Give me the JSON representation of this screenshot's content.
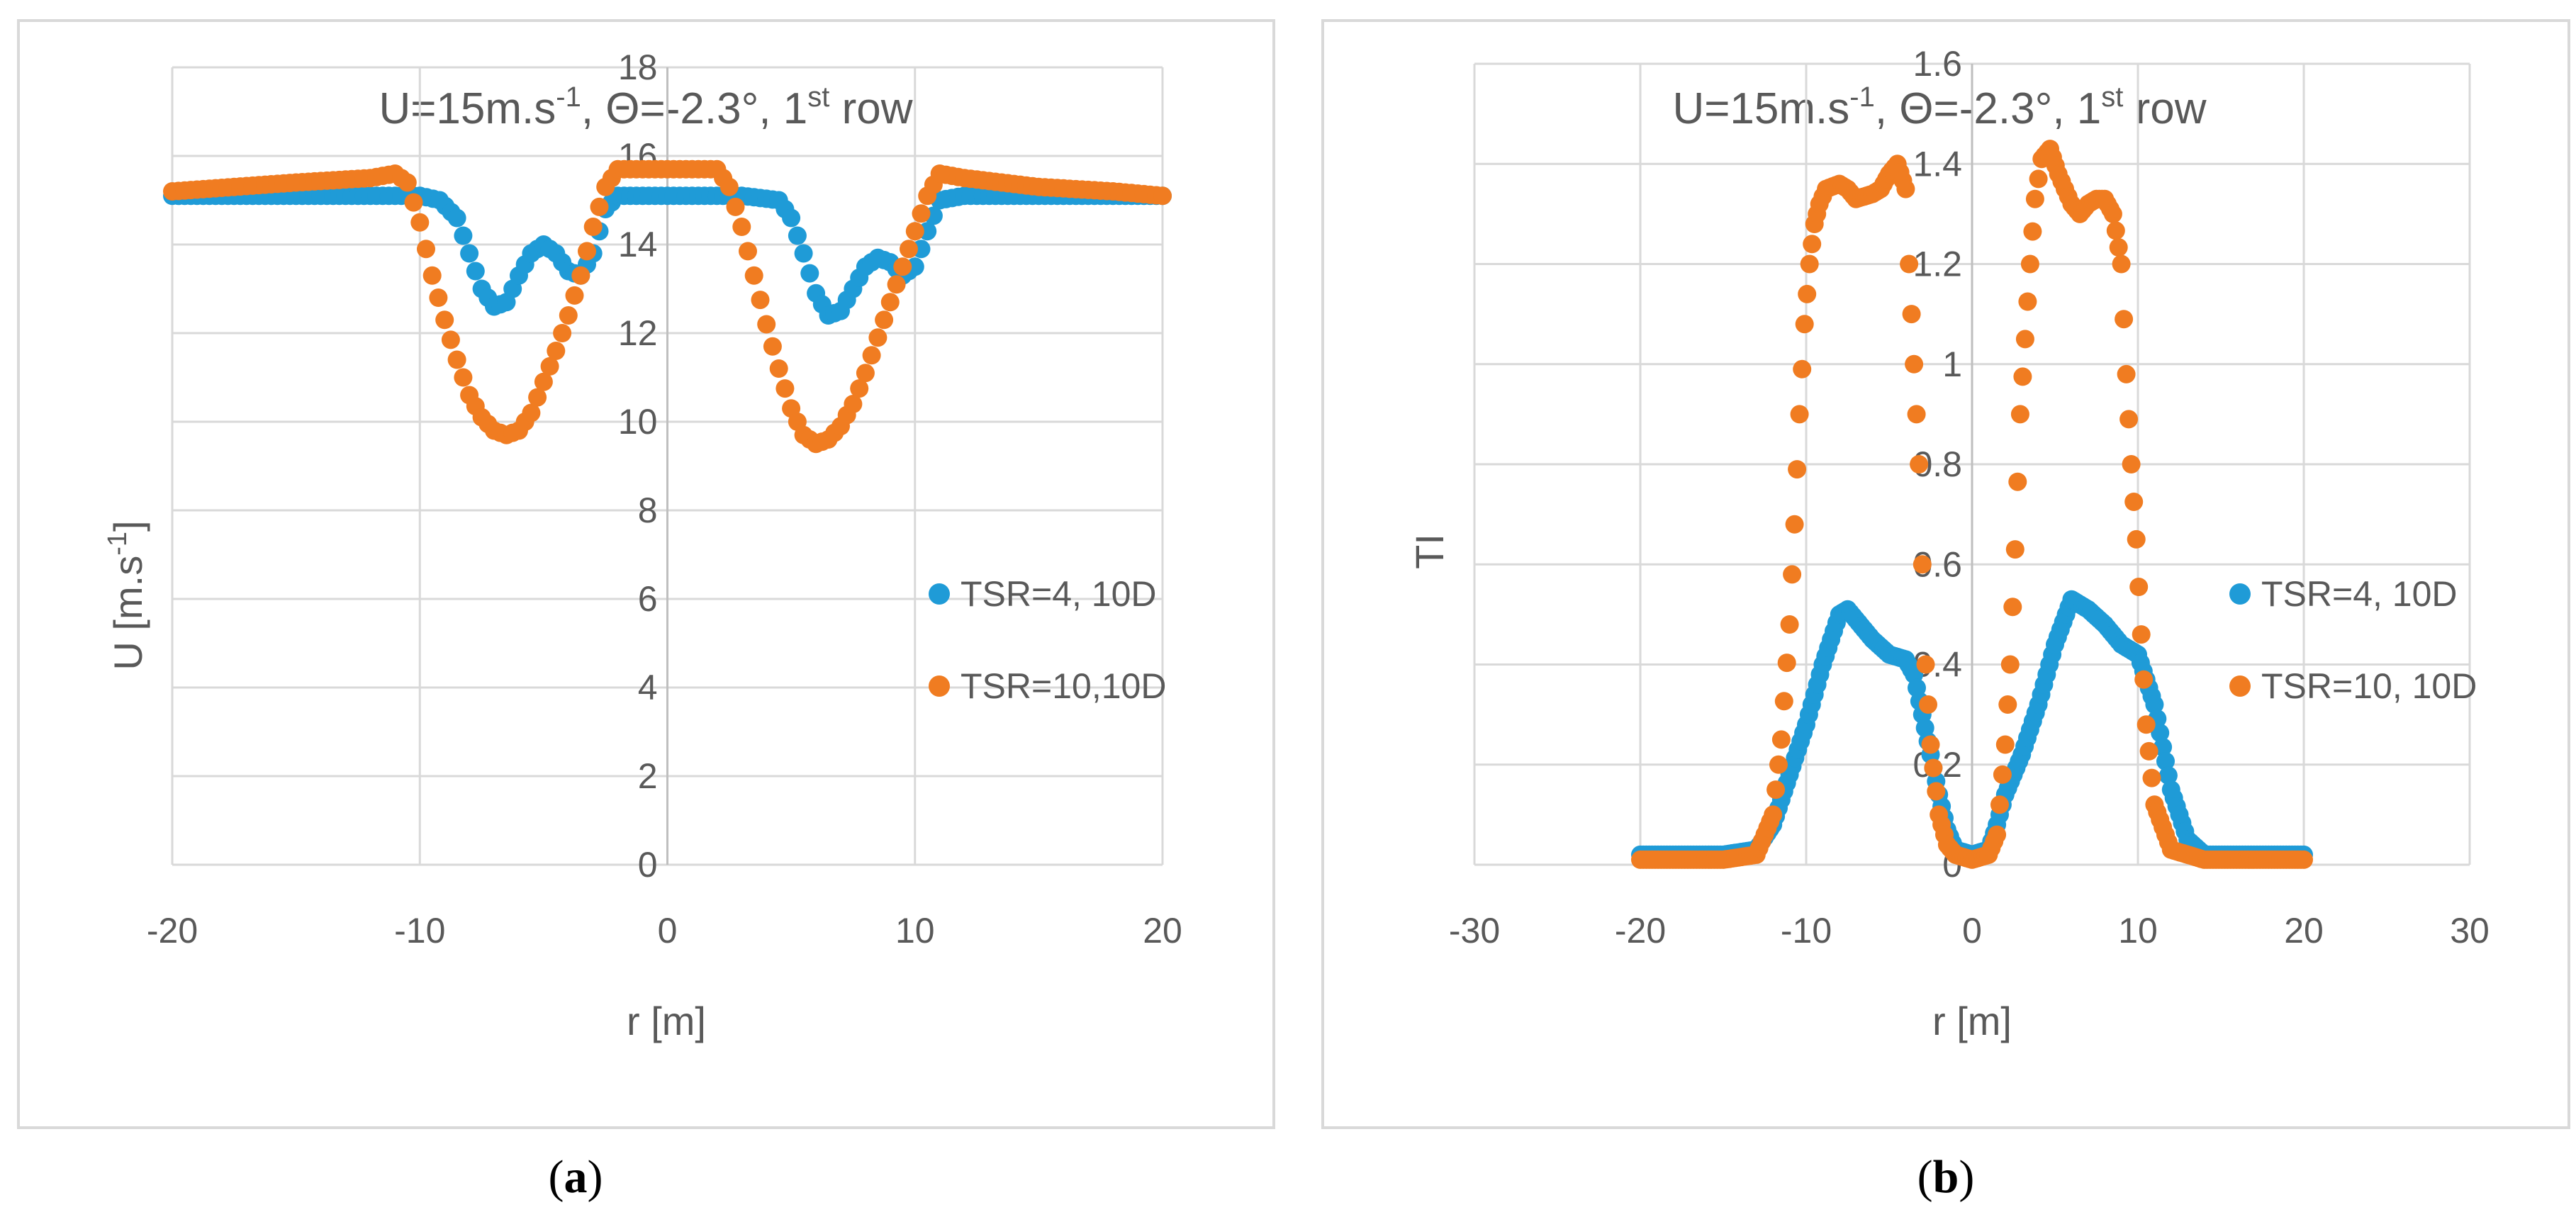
{
  "chart_data": [
    {
      "type": "scatter",
      "title": "U=15m.s-1, Θ=-2.3°, 1st row",
      "title_parts": {
        "u": "U=15m.s",
        "u_sup": "-1",
        "theta": ", Θ=-2.3°, 1",
        "ordinal_sup": "st",
        "row": " row"
      },
      "xlabel": "r [m]",
      "ylabel": "U [m.s-1]",
      "ylabel_parts": {
        "base": "U [m.s",
        "sup": "-1",
        "end": "]"
      },
      "xlim": [
        -20,
        20
      ],
      "ylim": [
        0,
        18
      ],
      "xticks": [
        -20,
        -10,
        0,
        10,
        20
      ],
      "yticks": [
        0,
        2,
        4,
        6,
        8,
        10,
        12,
        14,
        16,
        18
      ],
      "caption": "a",
      "series": [
        {
          "name": "TSR=4, 10D",
          "color": "#1f9bd7",
          "points": [
            [
              -20,
              15.1
            ],
            [
              -15,
              15.1
            ],
            [
              -10,
              15.1
            ],
            [
              -9.2,
              15.0
            ],
            [
              -8.5,
              14.6
            ],
            [
              -8,
              13.8
            ],
            [
              -7.5,
              13.0
            ],
            [
              -7,
              12.6
            ],
            [
              -6.5,
              12.7
            ],
            [
              -6,
              13.3
            ],
            [
              -5.5,
              13.8
            ],
            [
              -5,
              14.0
            ],
            [
              -4.5,
              13.8
            ],
            [
              -4,
              13.4
            ],
            [
              -3.5,
              13.3
            ],
            [
              -3,
              13.8
            ],
            [
              -2.5,
              14.8
            ],
            [
              -2,
              15.1
            ],
            [
              0,
              15.1
            ],
            [
              3,
              15.1
            ],
            [
              4.5,
              15.0
            ],
            [
              5,
              14.6
            ],
            [
              5.5,
              13.8
            ],
            [
              6,
              12.9
            ],
            [
              6.5,
              12.4
            ],
            [
              7,
              12.5
            ],
            [
              7.5,
              13.0
            ],
            [
              8,
              13.5
            ],
            [
              8.5,
              13.7
            ],
            [
              9,
              13.6
            ],
            [
              9.5,
              13.3
            ],
            [
              10,
              13.5
            ],
            [
              10.5,
              14.3
            ],
            [
              11,
              15.0
            ],
            [
              12,
              15.1
            ],
            [
              15,
              15.1
            ],
            [
              18,
              15.1
            ],
            [
              20,
              15.1
            ]
          ]
        },
        {
          "name": "TSR=10,10D",
          "color": "#f07c21",
          "points": [
            [
              -20,
              15.2
            ],
            [
              -15,
              15.4
            ],
            [
              -12,
              15.5
            ],
            [
              -11,
              15.6
            ],
            [
              -10.5,
              15.4
            ],
            [
              -10,
              14.5
            ],
            [
              -9.5,
              13.3
            ],
            [
              -9,
              12.3
            ],
            [
              -8.5,
              11.4
            ],
            [
              -8,
              10.6
            ],
            [
              -7.5,
              10.1
            ],
            [
              -7,
              9.8
            ],
            [
              -6.5,
              9.7
            ],
            [
              -6,
              9.8
            ],
            [
              -5.5,
              10.2
            ],
            [
              -5,
              10.9
            ],
            [
              -4.5,
              11.6
            ],
            [
              -4,
              12.4
            ],
            [
              -3.5,
              13.3
            ],
            [
              -3,
              14.4
            ],
            [
              -2.5,
              15.3
            ],
            [
              -2,
              15.7
            ],
            [
              0,
              15.7
            ],
            [
              2,
              15.7
            ],
            [
              2.5,
              15.3
            ],
            [
              3,
              14.4
            ],
            [
              3.5,
              13.3
            ],
            [
              4,
              12.2
            ],
            [
              4.5,
              11.2
            ],
            [
              5,
              10.3
            ],
            [
              5.5,
              9.7
            ],
            [
              6,
              9.5
            ],
            [
              6.5,
              9.6
            ],
            [
              7,
              9.9
            ],
            [
              7.5,
              10.4
            ],
            [
              8,
              11.1
            ],
            [
              8.5,
              11.9
            ],
            [
              9,
              12.7
            ],
            [
              9.5,
              13.5
            ],
            [
              10,
              14.3
            ],
            [
              10.5,
              15.1
            ],
            [
              11,
              15.6
            ],
            [
              12,
              15.5
            ],
            [
              15,
              15.3
            ],
            [
              18,
              15.2
            ],
            [
              20,
              15.1
            ]
          ]
        }
      ]
    },
    {
      "type": "scatter",
      "title": "U=15m.s-1, Θ=-2.3°, 1st row",
      "title_parts": {
        "u": "U=15m.s",
        "u_sup": "-1",
        "theta": ", Θ=-2.3°, 1",
        "ordinal_sup": "st",
        "row": " row"
      },
      "xlabel": "r [m]",
      "ylabel": "TI",
      "xlim": [
        -30,
        30
      ],
      "ylim": [
        0,
        1.6
      ],
      "xticks": [
        -30,
        -20,
        -10,
        0,
        10,
        20,
        30
      ],
      "yticks": [
        0,
        0.2,
        0.4,
        0.6,
        0.8,
        1,
        1.2,
        1.4,
        1.6
      ],
      "caption": "b",
      "series": [
        {
          "name": "TSR=4, 10D",
          "color": "#1f9bd7",
          "points": [
            [
              -20,
              0.02
            ],
            [
              -15,
              0.02
            ],
            [
              -13,
              0.03
            ],
            [
              -12,
              0.08
            ],
            [
              -11,
              0.18
            ],
            [
              -10,
              0.28
            ],
            [
              -9,
              0.4
            ],
            [
              -8,
              0.5
            ],
            [
              -7.5,
              0.51
            ],
            [
              -7,
              0.49
            ],
            [
              -6,
              0.45
            ],
            [
              -5,
              0.42
            ],
            [
              -4,
              0.41
            ],
            [
              -3.5,
              0.38
            ],
            [
              -3,
              0.3
            ],
            [
              -2.5,
              0.22
            ],
            [
              -2,
              0.14
            ],
            [
              -1.5,
              0.07
            ],
            [
              -1,
              0.03
            ],
            [
              0,
              0.02
            ],
            [
              1,
              0.03
            ],
            [
              1.5,
              0.08
            ],
            [
              2,
              0.14
            ],
            [
              3,
              0.22
            ],
            [
              4,
              0.32
            ],
            [
              5,
              0.44
            ],
            [
              6,
              0.53
            ],
            [
              6.5,
              0.52
            ],
            [
              7,
              0.51
            ],
            [
              8,
              0.48
            ],
            [
              9,
              0.44
            ],
            [
              10,
              0.42
            ],
            [
              11,
              0.32
            ],
            [
              12,
              0.15
            ],
            [
              13,
              0.05
            ],
            [
              14,
              0.02
            ],
            [
              17,
              0.02
            ],
            [
              20,
              0.02
            ]
          ]
        },
        {
          "name": "TSR=10, 10D",
          "color": "#f07c21",
          "points": [
            [
              -20,
              0.01
            ],
            [
              -15,
              0.01
            ],
            [
              -13,
              0.02
            ],
            [
              -12,
              0.1
            ],
            [
              -11.5,
              0.25
            ],
            [
              -11,
              0.48
            ],
            [
              -10.7,
              0.68
            ],
            [
              -10.4,
              0.9
            ],
            [
              -10.1,
              1.08
            ],
            [
              -9.8,
              1.2
            ],
            [
              -9.5,
              1.28
            ],
            [
              -9.2,
              1.32
            ],
            [
              -8.8,
              1.35
            ],
            [
              -8,
              1.36
            ],
            [
              -7.5,
              1.35
            ],
            [
              -7,
              1.33
            ],
            [
              -6,
              1.34
            ],
            [
              -5.5,
              1.35
            ],
            [
              -5,
              1.38
            ],
            [
              -4.5,
              1.4
            ],
            [
              -4,
              1.35
            ],
            [
              -3.8,
              1.2
            ],
            [
              -3.5,
              1.0
            ],
            [
              -3.2,
              0.8
            ],
            [
              -3,
              0.6
            ],
            [
              -2.8,
              0.4
            ],
            [
              -2.5,
              0.24
            ],
            [
              -2,
              0.1
            ],
            [
              -1.5,
              0.04
            ],
            [
              -1,
              0.02
            ],
            [
              0,
              0.01
            ],
            [
              1,
              0.02
            ],
            [
              1.5,
              0.06
            ],
            [
              2,
              0.24
            ],
            [
              2.3,
              0.4
            ],
            [
              2.6,
              0.63
            ],
            [
              2.9,
              0.9
            ],
            [
              3.2,
              1.05
            ],
            [
              3.5,
              1.2
            ],
            [
              3.8,
              1.33
            ],
            [
              4.2,
              1.41
            ],
            [
              4.7,
              1.43
            ],
            [
              5.2,
              1.38
            ],
            [
              6,
              1.32
            ],
            [
              6.5,
              1.3
            ],
            [
              7,
              1.32
            ],
            [
              7.5,
              1.33
            ],
            [
              8,
              1.33
            ],
            [
              8.5,
              1.3
            ],
            [
              9,
              1.2
            ],
            [
              9.3,
              0.98
            ],
            [
              9.6,
              0.8
            ],
            [
              9.9,
              0.65
            ],
            [
              10.2,
              0.46
            ],
            [
              10.5,
              0.28
            ],
            [
              11,
              0.12
            ],
            [
              12,
              0.03
            ],
            [
              14,
              0.01
            ],
            [
              17,
              0.01
            ],
            [
              20,
              0.01
            ]
          ]
        }
      ]
    }
  ]
}
